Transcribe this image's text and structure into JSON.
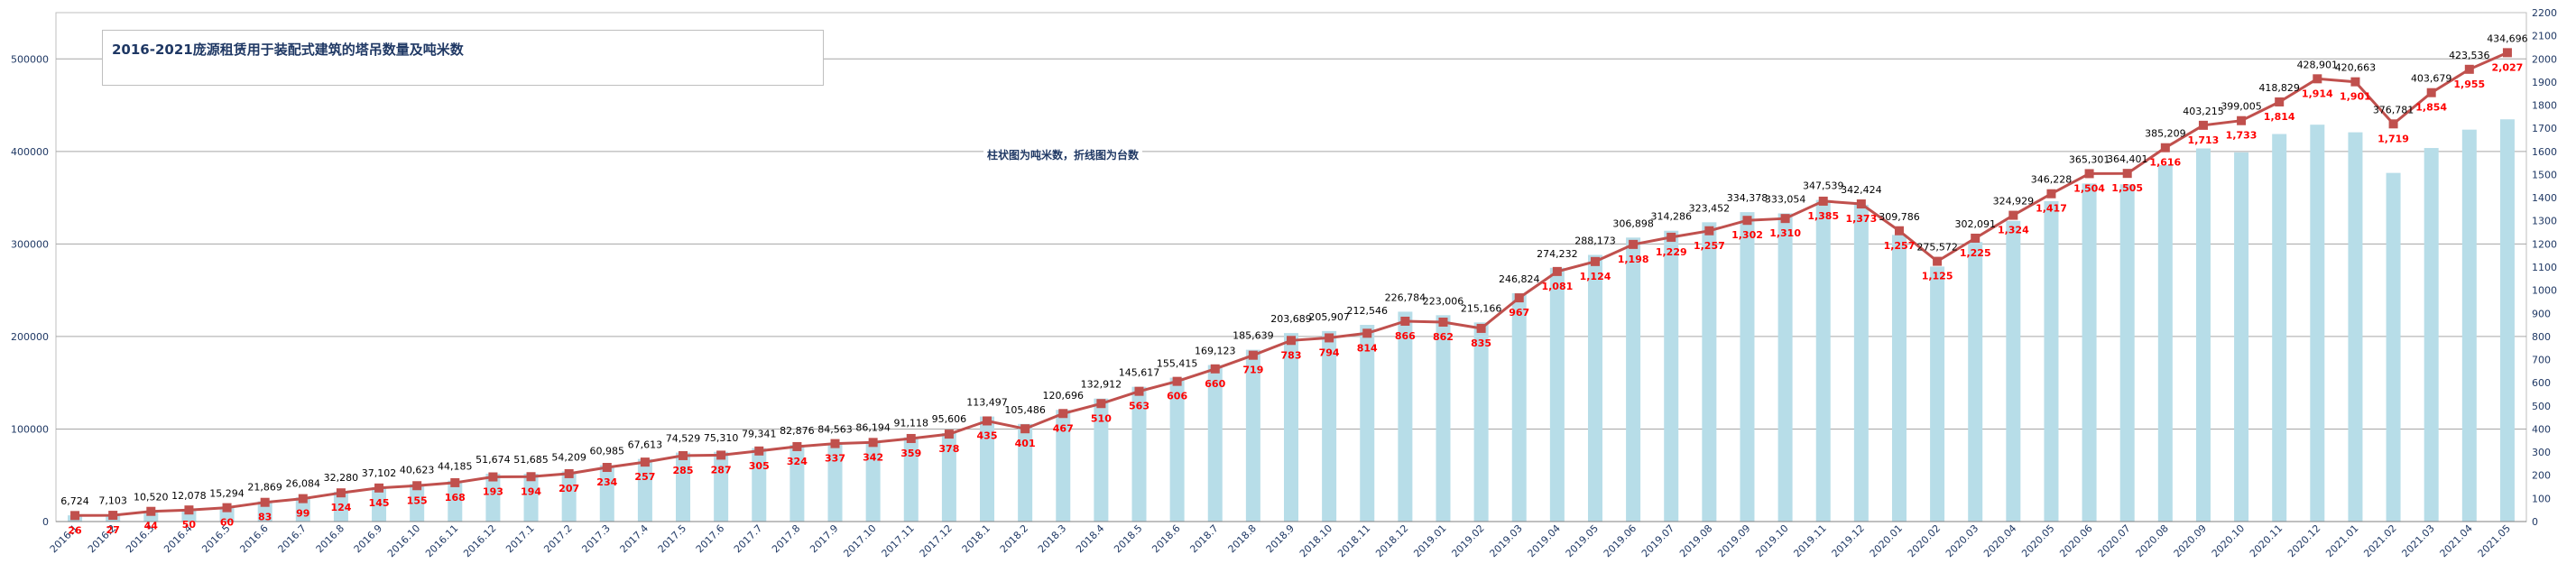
{
  "chart_data": {
    "type": "bar+line",
    "title": "2016-2021庞源租赁用于装配式建筑的塔吊数量及吨米数",
    "note": "柱状图为吨米数，折线图为台数",
    "categories": [
      "2016.1",
      "2016.2",
      "2016.3",
      "2016.4",
      "2016.5",
      "2016.6",
      "2016.7",
      "2016.8",
      "2016.9",
      "2016.10",
      "2016.11",
      "2016.12",
      "2017.1",
      "2017.2",
      "2017.3",
      "2017.4",
      "2017.5",
      "2017.6",
      "2017.7",
      "2017.8",
      "2017.9",
      "2017.10",
      "2017.11",
      "2017.12",
      "2018.1",
      "2018.2",
      "2018.3",
      "2018.4",
      "2018.5",
      "2018.6",
      "2018.7",
      "2018.8",
      "2018.9",
      "2018.10",
      "2018.11",
      "2018.12",
      "2019.01",
      "2019.02",
      "2019.03",
      "2019.04",
      "2019.05",
      "2019.06",
      "2019.07",
      "2019.08",
      "2019.09",
      "2019.10",
      "2019.11",
      "2019.12",
      "2020.01",
      "2020.02",
      "2020.03",
      "2020.04",
      "2020.05",
      "2020.06",
      "2020.07",
      "2020.08",
      "2020.09",
      "2020.10",
      "2020.11",
      "2020.12",
      "2021.01",
      "2021.02",
      "2021.03",
      "2021.04",
      "2021.05"
    ],
    "bar_values": [
      6724,
      7103,
      10520,
      12078,
      15294,
      21869,
      26084,
      32280,
      37102,
      40623,
      44185,
      51674,
      51685,
      54209,
      60985,
      67613,
      74529,
      75310,
      79341,
      82876,
      84563,
      86194,
      91118,
      95606,
      113497,
      105486,
      120696,
      132912,
      145617,
      155415,
      169123,
      185639,
      203689,
      205907,
      212546,
      226784,
      223006,
      215166,
      246824,
      274232,
      288173,
      306898,
      314286,
      323452,
      334378,
      333054,
      347539,
      342424,
      309786,
      275572,
      302091,
      324929,
      346228,
      365301,
      364401,
      385209,
      403215,
      399005,
      418829,
      428901,
      420663,
      376781,
      403679,
      423536,
      434696
    ],
    "bar_labels": [
      "6,724",
      "7,103",
      "10,520",
      "12,078",
      "15,294",
      "21,869",
      "26,084",
      "32,280",
      "37,102",
      "40,623",
      "44,185",
      "51,674",
      "51,685",
      "54,209",
      "60,985",
      "67,613",
      "74,529",
      "75,310",
      "79,341",
      "82,876",
      "84,563",
      "86,194",
      "91,118",
      "95,606",
      "113,497",
      "105,486",
      "120,696",
      "132,912",
      "145,617",
      "155,415",
      "169,123",
      "185,639",
      "203,689",
      "205,907",
      "212,546",
      "226,784",
      "223,006",
      "215,166",
      "246,824",
      "274,232",
      "288,173",
      "306,898",
      "314,286",
      "323,452",
      "334,378",
      "333,054",
      "347,539",
      "342,424",
      "309,786",
      "275,572",
      "302,091",
      "324,929",
      "346,228",
      "365,301",
      "364,401",
      "385,209",
      "403,215",
      "399,005",
      "418,829",
      "428,901",
      "420,663",
      "376,781",
      "403,679",
      "423,536",
      "434,696"
    ],
    "line_values": [
      26,
      27,
      44,
      50,
      60,
      83,
      99,
      124,
      145,
      155,
      168,
      193,
      194,
      207,
      234,
      257,
      285,
      287,
      305,
      324,
      337,
      342,
      359,
      378,
      435,
      401,
      467,
      510,
      563,
      606,
      660,
      719,
      783,
      794,
      814,
      866,
      862,
      835,
      967,
      1081,
      1124,
      1198,
      1229,
      1257,
      1302,
      1310,
      1385,
      1373,
      1257,
      1125,
      1225,
      1324,
      1417,
      1504,
      1505,
      1616,
      1713,
      1733,
      1814,
      1914,
      1901,
      1719,
      1854,
      1955,
      2027
    ],
    "line_labels": [
      "26",
      "27",
      "44",
      "50",
      "60",
      "83",
      "99",
      "124",
      "145",
      "155",
      "168",
      "193",
      "194",
      "207",
      "234",
      "257",
      "285",
      "287",
      "305",
      "324",
      "337",
      "342",
      "359",
      "378",
      "435",
      "401",
      "467",
      "510",
      "563",
      "606",
      "660",
      "719",
      "783",
      "794",
      "814",
      "866",
      "862",
      "835",
      "967",
      "1,081",
      "1,124",
      "1,198",
      "1,229",
      "1,257",
      "1,302",
      "1,310",
      "1,385",
      "1,373",
      "1,257",
      "1,125",
      "1,225",
      "1,324",
      "1,417",
      "1,504",
      "1,505",
      "1,616",
      "1,713",
      "1,733",
      "1,814",
      "1,914",
      "1,901",
      "1,719",
      "1,854",
      "1,955",
      "2,027"
    ],
    "left_axis": {
      "min": 0,
      "max": 550000,
      "ticks": [
        0,
        100000,
        200000,
        300000,
        400000,
        500000
      ]
    },
    "right_axis": {
      "min": 0,
      "max": 2200,
      "ticks": [
        0,
        100,
        200,
        300,
        400,
        500,
        600,
        700,
        800,
        900,
        1000,
        1100,
        1200,
        1300,
        1400,
        1500,
        1600,
        1700,
        1800,
        1900,
        2000,
        2100,
        2200
      ]
    },
    "grid": true,
    "colors": {
      "bar": "#b7dde8",
      "line": "#c0504d",
      "line_label": "#ff0000",
      "bar_label": "#000000",
      "axis_text": "#1f3864",
      "grid": "#a6a6a6",
      "title": "#1f3864"
    }
  }
}
